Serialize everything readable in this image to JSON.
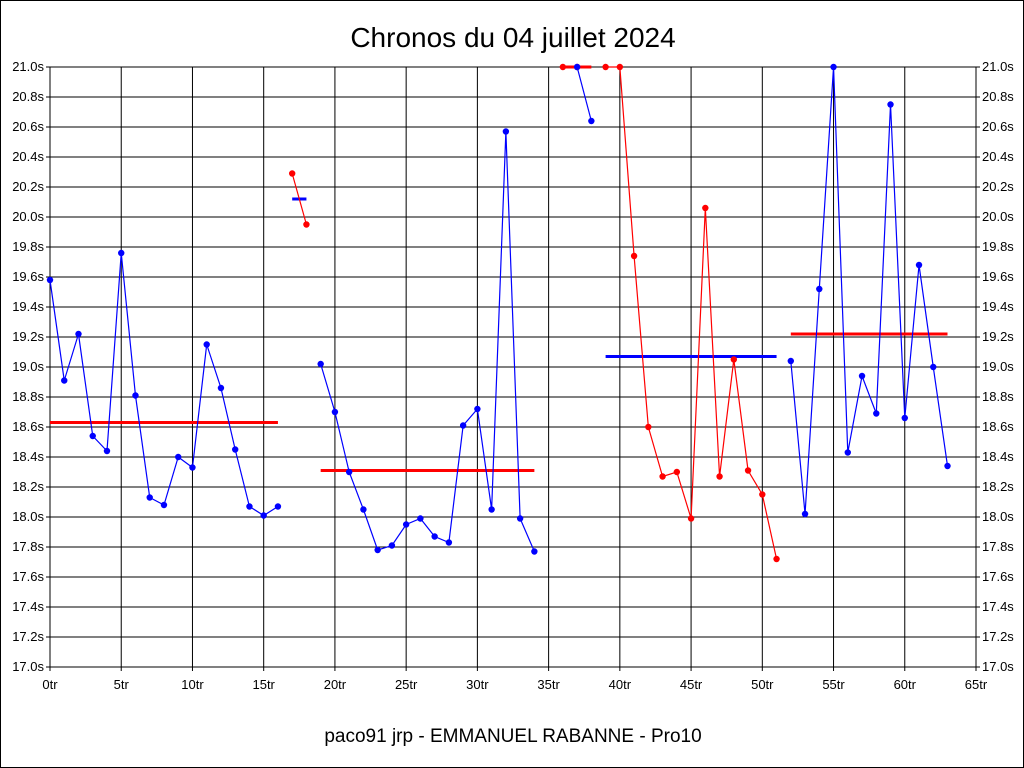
{
  "chart_data": {
    "type": "line",
    "title": "Chronos du 04 juillet 2024",
    "footer": "paco91 jrp - EMMANUEL RABANNE - Pro10",
    "xlim": [
      0,
      65
    ],
    "ylim": [
      17.0,
      21.0
    ],
    "x_ticks": [
      0,
      5,
      10,
      15,
      20,
      25,
      30,
      35,
      40,
      45,
      50,
      55,
      60,
      65
    ],
    "x_tick_labels": [
      "0tr",
      "5tr",
      "10tr",
      "15tr",
      "20tr",
      "25tr",
      "30tr",
      "35tr",
      "40tr",
      "45tr",
      "50tr",
      "55tr",
      "60tr",
      "65tr"
    ],
    "y_ticks": [
      17.0,
      17.2,
      17.4,
      17.6,
      17.8,
      18.0,
      18.2,
      18.4,
      18.6,
      18.8,
      19.0,
      19.2,
      19.4,
      19.6,
      19.8,
      20.0,
      20.2,
      20.4,
      20.6,
      20.8,
      21.0
    ],
    "y_tick_labels": [
      "17.0s",
      "17.2s",
      "17.4s",
      "17.6s",
      "17.8s",
      "18.0s",
      "18.2s",
      "18.4s",
      "18.6s",
      "18.8s",
      "19.0s",
      "19.2s",
      "19.4s",
      "19.6s",
      "19.8s",
      "20.0s",
      "20.2s",
      "20.4s",
      "20.6s",
      "20.8s",
      "21.0s"
    ],
    "grid": true,
    "series": [
      {
        "color": "#0000ff",
        "x": [
          0,
          1,
          2,
          3,
          4,
          5,
          6,
          7,
          8,
          9,
          10,
          11,
          12,
          13,
          14,
          15,
          16
        ],
        "y": [
          19.58,
          18.91,
          19.22,
          18.54,
          18.44,
          19.76,
          18.81,
          18.13,
          18.08,
          18.4,
          18.33,
          19.15,
          18.86,
          18.45,
          18.07,
          18.01,
          18.07
        ]
      },
      {
        "color": "#ff0000",
        "x": [
          17,
          18
        ],
        "y": [
          20.29,
          19.95
        ]
      },
      {
        "color": "#0000ff",
        "x": [
          19,
          20,
          21,
          22,
          23,
          24,
          25,
          26,
          27,
          28,
          29,
          30,
          31,
          32,
          33,
          34
        ],
        "y": [
          19.02,
          18.7,
          18.3,
          18.05,
          17.78,
          17.81,
          17.95,
          17.99,
          17.87,
          17.83,
          18.61,
          18.72,
          18.05,
          20.57,
          17.99,
          17.77
        ]
      },
      {
        "color": "#ff0000",
        "x": [
          36,
          37
        ],
        "y": [
          21.0,
          21.0
        ]
      },
      {
        "color": "#0000ff",
        "x": [
          37,
          38
        ],
        "y": [
          21.0,
          20.64
        ]
      },
      {
        "color": "#ff0000",
        "x": [
          39,
          40,
          41,
          42,
          43,
          44,
          45,
          46,
          47,
          48,
          49,
          50,
          51
        ],
        "y": [
          21.0,
          21.0,
          19.74,
          18.6,
          18.27,
          18.3,
          17.99,
          20.06,
          18.27,
          19.05,
          18.31,
          18.15,
          17.72
        ]
      },
      {
        "color": "#0000ff",
        "x": [
          52,
          53,
          54,
          55,
          56,
          57,
          58,
          59,
          60,
          61,
          62,
          63
        ],
        "y": [
          19.04,
          18.02,
          19.52,
          21.0,
          18.43,
          18.94,
          18.69,
          20.75,
          18.66,
          19.68,
          19.0,
          18.34
        ]
      }
    ],
    "averages": [
      {
        "color": "#ff0000",
        "x_start": 0,
        "x_end": 16,
        "y": 18.63
      },
      {
        "color": "#0000ff",
        "x_start": 17,
        "x_end": 18,
        "y": 20.12
      },
      {
        "color": "#ff0000",
        "x_start": 19,
        "x_end": 34,
        "y": 18.31
      },
      {
        "color": "#ff0000",
        "x_start": 36,
        "x_end": 38,
        "y": 21.0
      },
      {
        "color": "#0000ff",
        "x_start": 39,
        "x_end": 51,
        "y": 19.07
      },
      {
        "color": "#ff0000",
        "x_start": 52,
        "x_end": 63,
        "y": 19.22
      }
    ]
  }
}
